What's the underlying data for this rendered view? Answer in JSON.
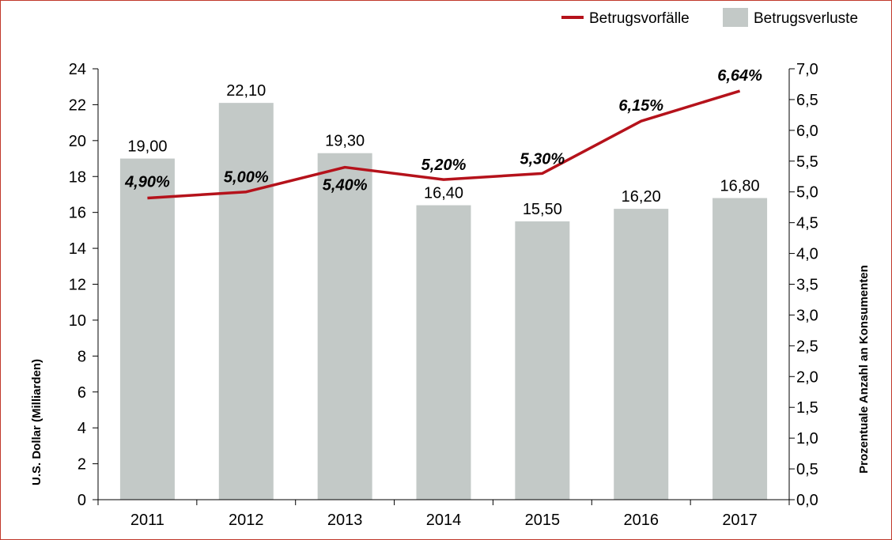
{
  "chart_data": {
    "type": "bar",
    "categories": [
      "2011",
      "2012",
      "2013",
      "2014",
      "2015",
      "2016",
      "2017"
    ],
    "series": [
      {
        "name": "Betrugsverluste",
        "type": "bar",
        "axis": "left",
        "color": "#c3c9c7",
        "values": [
          19.0,
          22.1,
          19.3,
          16.4,
          15.5,
          16.2,
          16.8
        ],
        "labels": [
          "19,00",
          "22,10",
          "19,30",
          "16,40",
          "15,50",
          "16,20",
          "16,80"
        ]
      },
      {
        "name": "Betrugsvorfälle",
        "type": "line",
        "axis": "right",
        "color": "#b5121b",
        "values": [
          4.9,
          5.0,
          5.4,
          5.2,
          5.3,
          6.15,
          6.64
        ],
        "labels": [
          "4,90%",
          "5,00%",
          "5,40%",
          "5,20%",
          "5,30%",
          "6,15%",
          "6,64%"
        ]
      }
    ],
    "ylabel": "U.S. Dollar (Milliarden)",
    "y2label": "Prozentuale Anzahl an Konsumenten",
    "ylim": [
      0,
      24
    ],
    "y2lim": [
      0,
      7
    ],
    "yticks": [
      "0",
      "2",
      "4",
      "6",
      "8",
      "10",
      "12",
      "14",
      "16",
      "18",
      "20",
      "22",
      "24"
    ],
    "y2ticks": [
      "0,0",
      "0,5",
      "1,0",
      "1,5",
      "2,0",
      "2,5",
      "3,0",
      "3,5",
      "4,0",
      "4,5",
      "5,0",
      "5,5",
      "6,0",
      "6,5",
      "7,0"
    ],
    "grid": false,
    "legend_position": "top-right"
  }
}
